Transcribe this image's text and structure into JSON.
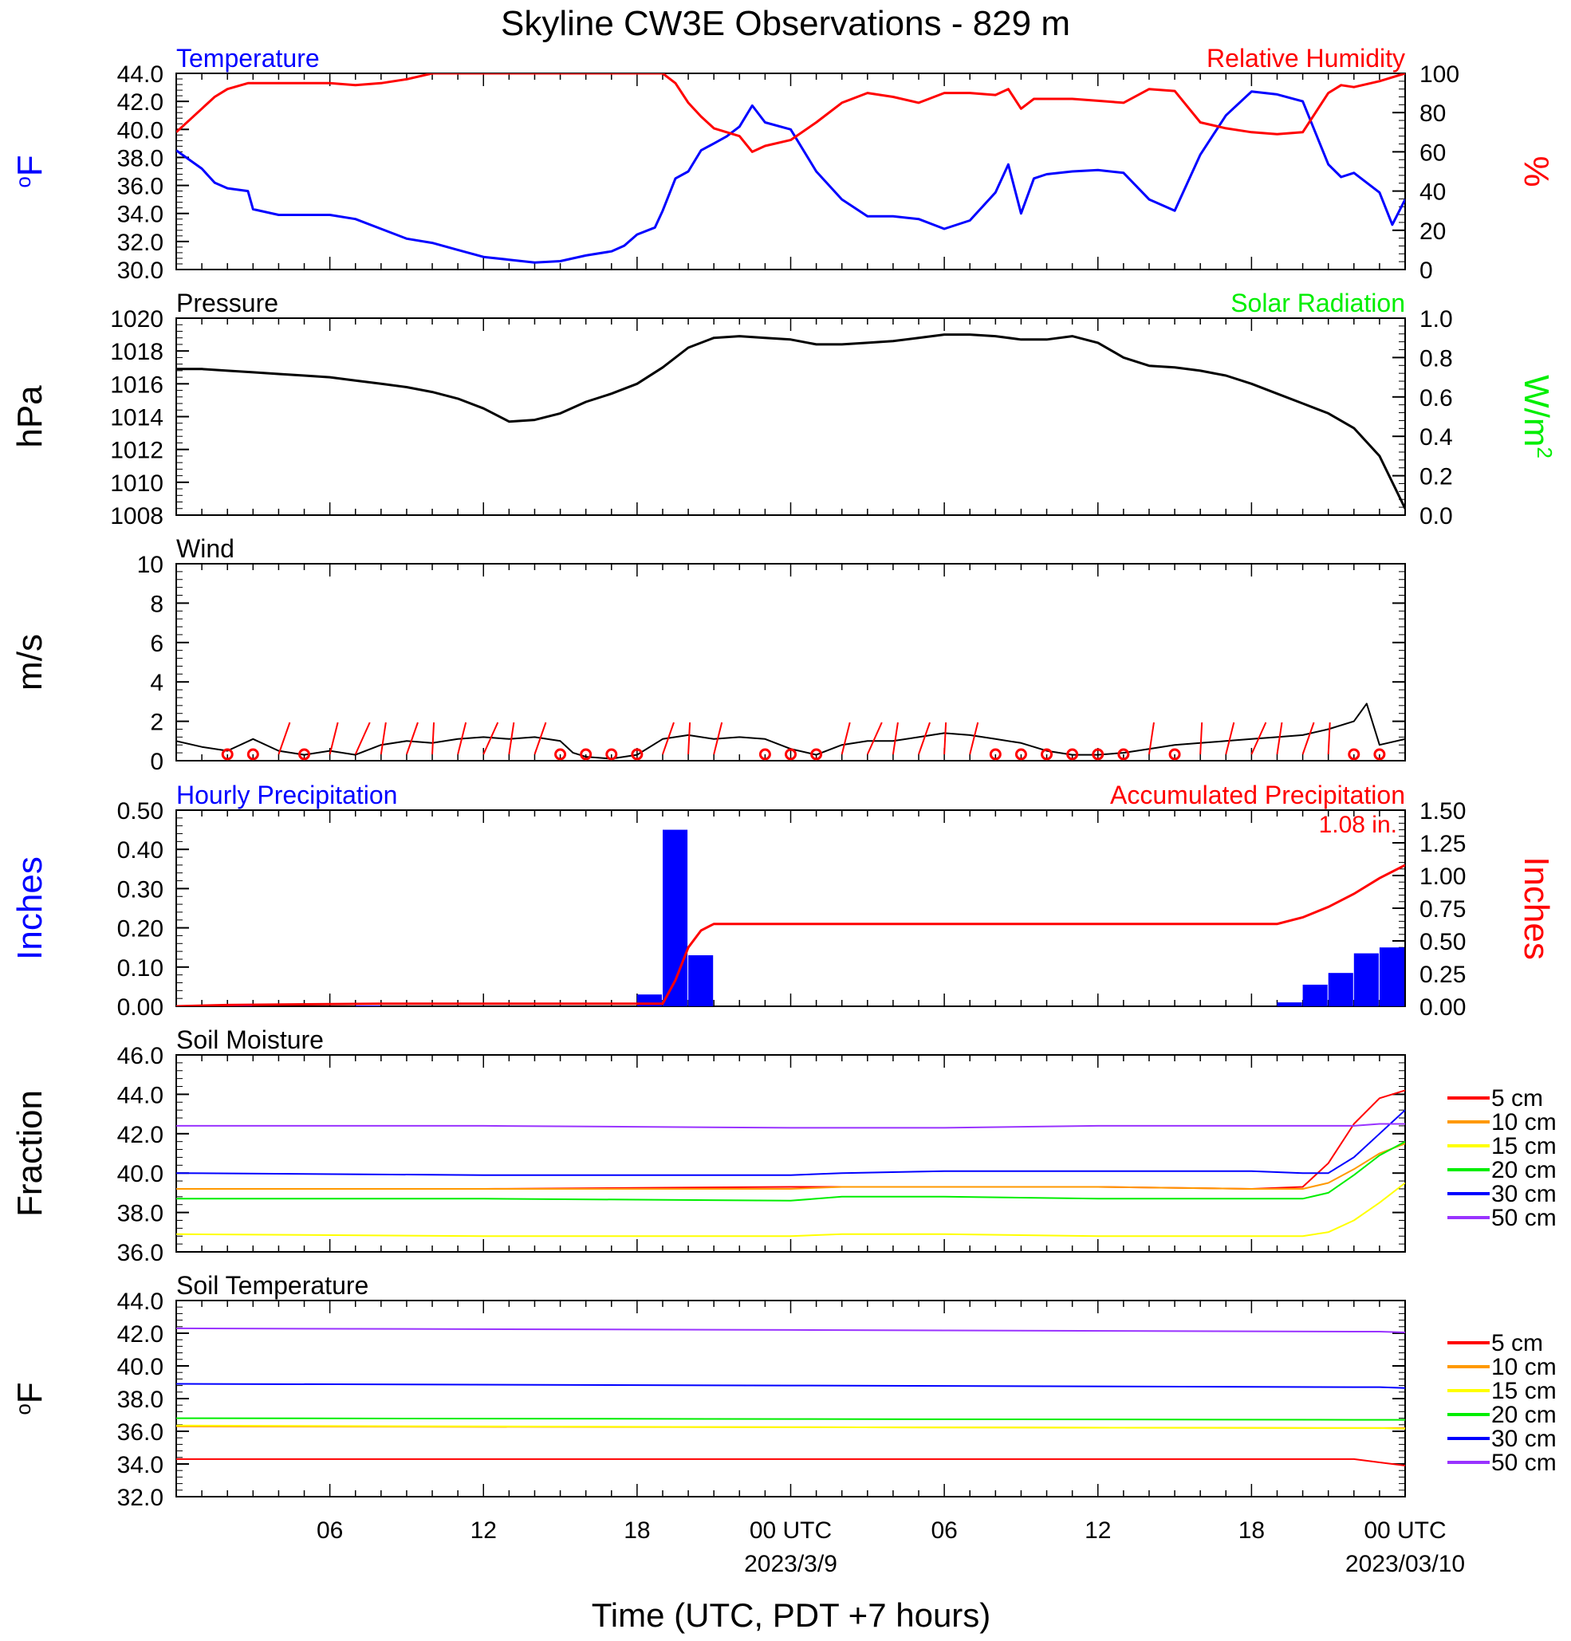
{
  "title": "Skyline CW3E Observations - 829 m",
  "xlabel": "Time (UTC, PDT +7 hours)",
  "x_ticks": [
    {
      "hour": 6,
      "label": "06"
    },
    {
      "hour": 12,
      "label": "12"
    },
    {
      "hour": 18,
      "label": "18"
    },
    {
      "hour": 24,
      "label": "00 UTC",
      "date": "2023/3/9"
    },
    {
      "hour": 30,
      "label": "06"
    },
    {
      "hour": 36,
      "label": "12"
    },
    {
      "hour": 42,
      "label": "18"
    },
    {
      "hour": 48,
      "label": "00 UTC",
      "date": "2023/03/10"
    }
  ],
  "legend_labels": [
    "5 cm",
    "10 cm",
    "15 cm",
    "20 cm",
    "30 cm",
    "50 cm"
  ],
  "colors": {
    "blue": "#0000ff",
    "red": "#ff0000",
    "green": "#00ee00",
    "black": "#000000",
    "orange": "#ff9900",
    "yellow": "#ffff00",
    "purple": "#9933ff"
  },
  "chart_data": [
    {
      "type": "line",
      "panel": "temperature_rh",
      "title_left": "Temperature",
      "title_right": "Relative Humidity",
      "ylabel": "oF",
      "ylabel_right": "%",
      "ylim": [
        30,
        44
      ],
      "yticks": [
        "30.0",
        "32.0",
        "34.0",
        "36.0",
        "38.0",
        "40.0",
        "42.0",
        "44.0"
      ],
      "ylim_right": [
        0,
        100
      ],
      "yticks_right": [
        "0",
        "20",
        "40",
        "60",
        "80",
        "100"
      ],
      "x": [
        0,
        1,
        1.5,
        2,
        2.8,
        3,
        4,
        5,
        6,
        7,
        8,
        9,
        10,
        11,
        12,
        13,
        14,
        15,
        16,
        17,
        17.5,
        18,
        18.7,
        19,
        19.5,
        20,
        20.5,
        21,
        21.5,
        22,
        22.5,
        23,
        24,
        25,
        26,
        27,
        28,
        29,
        30,
        31,
        32,
        32.5,
        33,
        33.5,
        34,
        35,
        36,
        37,
        38,
        39,
        40,
        41,
        42,
        43,
        44,
        45,
        45.5,
        46,
        47,
        47.5,
        48
      ],
      "series": [
        {
          "name": "Temperature",
          "color": "#0000ff",
          "axis": "left",
          "values": [
            38.5,
            37.2,
            36.2,
            35.8,
            35.6,
            34.3,
            33.9,
            33.9,
            33.9,
            33.6,
            32.9,
            32.2,
            31.9,
            31.4,
            30.9,
            30.7,
            30.5,
            30.6,
            31.0,
            31.3,
            31.7,
            32.5,
            33.0,
            34.2,
            36.5,
            37.0,
            38.5,
            39.0,
            39.5,
            40.2,
            41.7,
            40.5,
            40.0,
            37.0,
            35.0,
            33.8,
            33.8,
            33.6,
            32.9,
            33.5,
            35.5,
            37.5,
            34.0,
            36.5,
            36.8,
            37.0,
            37.1,
            36.9,
            35.0,
            34.2,
            38.2,
            41.0,
            42.7,
            42.5,
            42.0,
            37.5,
            36.6,
            36.9,
            35.5,
            33.2,
            35.0
          ]
        },
        {
          "name": "Relative Humidity",
          "color": "#ff0000",
          "axis": "right",
          "values": [
            70,
            82,
            88,
            92,
            95,
            95,
            95,
            95,
            95,
            94,
            95,
            97,
            100,
            100,
            100,
            100,
            100,
            100,
            100,
            100,
            100,
            100,
            100,
            100,
            95,
            85,
            78,
            72,
            70,
            68,
            60,
            63,
            66,
            75,
            85,
            90,
            88,
            85,
            90,
            90,
            89,
            92,
            82,
            87,
            87,
            87,
            86,
            85,
            92,
            91,
            75,
            72,
            70,
            69,
            70,
            90,
            94,
            93,
            96,
            98,
            100
          ]
        }
      ]
    },
    {
      "type": "line",
      "panel": "pressure_solar",
      "title_left": "Pressure",
      "title_right": "Solar Radiation",
      "ylabel": "hPa",
      "ylabel_right": "W/m2",
      "ylim": [
        1008,
        1020
      ],
      "yticks": [
        "1008",
        "1010",
        "1012",
        "1014",
        "1016",
        "1018",
        "1020"
      ],
      "ylim_right": [
        0,
        1
      ],
      "yticks_right": [
        "0.0",
        "0.2",
        "0.4",
        "0.6",
        "0.8",
        "1.0"
      ],
      "x": [
        0,
        1,
        2,
        3,
        4,
        5,
        6,
        7,
        8,
        9,
        10,
        11,
        12,
        13,
        14,
        15,
        16,
        17,
        18,
        19,
        20,
        21,
        22,
        23,
        24,
        25,
        26,
        27,
        28,
        29,
        30,
        31,
        32,
        33,
        34,
        35,
        36,
        37,
        38,
        39,
        40,
        41,
        42,
        43,
        44,
        45,
        46,
        47,
        48
      ],
      "series": [
        {
          "name": "Pressure",
          "color": "#000000",
          "axis": "left",
          "values": [
            1016.9,
            1016.9,
            1016.8,
            1016.7,
            1016.6,
            1016.5,
            1016.4,
            1016.2,
            1016.0,
            1015.8,
            1015.5,
            1015.1,
            1014.5,
            1013.7,
            1013.8,
            1014.2,
            1014.9,
            1015.4,
            1016.0,
            1017.0,
            1018.2,
            1018.8,
            1018.9,
            1018.8,
            1018.7,
            1018.4,
            1018.4,
            1018.5,
            1018.6,
            1018.8,
            1019.0,
            1019.0,
            1018.9,
            1018.7,
            1018.7,
            1018.9,
            1018.5,
            1017.6,
            1017.1,
            1017.0,
            1016.8,
            1016.5,
            1016.0,
            1015.4,
            1014.8,
            1014.2,
            1013.3,
            1011.6,
            1008.4
          ]
        }
      ]
    },
    {
      "type": "line",
      "panel": "wind",
      "title_left": "Wind",
      "ylabel": "m/s",
      "ylim": [
        0,
        10
      ],
      "yticks": [
        "0",
        "2",
        "4",
        "6",
        "8",
        "10"
      ],
      "x": [
        0,
        1,
        2,
        3,
        4,
        5,
        6,
        7,
        8,
        9,
        10,
        11,
        12,
        13,
        14,
        15,
        15.5,
        16,
        17,
        18,
        19,
        20,
        21,
        22,
        23,
        24,
        25,
        26,
        27,
        28,
        29,
        30,
        31,
        32,
        33,
        34,
        35,
        36,
        37,
        38,
        39,
        40,
        41,
        42,
        43,
        44,
        45,
        46,
        46.5,
        47,
        48
      ],
      "series": [
        {
          "name": "Wind speed",
          "color": "#000000",
          "axis": "left",
          "values": [
            1.0,
            0.7,
            0.5,
            1.1,
            0.5,
            0.3,
            0.5,
            0.3,
            0.8,
            1.0,
            0.9,
            1.1,
            1.2,
            1.1,
            1.2,
            1.0,
            0.4,
            0.2,
            0.1,
            0.3,
            1.1,
            1.3,
            1.1,
            1.2,
            1.1,
            0.6,
            0.3,
            0.8,
            1.0,
            1.0,
            1.2,
            1.4,
            1.3,
            1.1,
            0.9,
            0.5,
            0.3,
            0.3,
            0.4,
            0.6,
            0.8,
            0.9,
            1.0,
            1.1,
            1.2,
            1.3,
            1.6,
            2.0,
            2.9,
            0.8,
            1.1
          ]
        }
      ],
      "barbs": [
        {
          "hour": 2,
          "calm": true
        },
        {
          "hour": 3,
          "calm": true
        },
        {
          "hour": 4,
          "calm": false
        },
        {
          "hour": 5,
          "calm": true
        },
        {
          "hour": 6,
          "calm": false
        },
        {
          "hour": 7,
          "calm": false
        },
        {
          "hour": 8,
          "calm": false
        },
        {
          "hour": 9,
          "calm": false
        },
        {
          "hour": 10,
          "calm": false
        },
        {
          "hour": 11,
          "calm": false
        },
        {
          "hour": 12,
          "calm": false
        },
        {
          "hour": 13,
          "calm": false
        },
        {
          "hour": 14,
          "calm": false
        },
        {
          "hour": 15,
          "calm": true
        },
        {
          "hour": 16,
          "calm": true
        },
        {
          "hour": 17,
          "calm": true
        },
        {
          "hour": 18,
          "calm": true
        },
        {
          "hour": 19,
          "calm": false
        },
        {
          "hour": 20,
          "calm": false
        },
        {
          "hour": 21,
          "calm": false
        },
        {
          "hour": 23,
          "calm": true
        },
        {
          "hour": 24,
          "calm": true
        },
        {
          "hour": 25,
          "calm": true
        },
        {
          "hour": 26,
          "calm": false
        },
        {
          "hour": 27,
          "calm": false
        },
        {
          "hour": 28,
          "calm": false
        },
        {
          "hour": 29,
          "calm": false
        },
        {
          "hour": 30,
          "calm": false
        },
        {
          "hour": 31,
          "calm": false
        },
        {
          "hour": 32,
          "calm": true
        },
        {
          "hour": 33,
          "calm": true
        },
        {
          "hour": 34,
          "calm": true
        },
        {
          "hour": 35,
          "calm": true
        },
        {
          "hour": 36,
          "calm": true
        },
        {
          "hour": 37,
          "calm": true
        },
        {
          "hour": 38,
          "calm": false
        },
        {
          "hour": 39,
          "calm": true
        },
        {
          "hour": 40,
          "calm": false
        },
        {
          "hour": 41,
          "calm": false
        },
        {
          "hour": 42,
          "calm": false
        },
        {
          "hour": 43,
          "calm": false
        },
        {
          "hour": 44,
          "calm": false
        },
        {
          "hour": 45,
          "calm": false
        },
        {
          "hour": 46,
          "calm": true
        },
        {
          "hour": 47,
          "calm": true
        }
      ]
    },
    {
      "type": "bar",
      "panel": "precipitation",
      "title_left": "Hourly Precipitation",
      "title_right": "Accumulated Precipitation",
      "annotation": "1.08 in.",
      "ylabel": "Inches",
      "ylabel_right": "Inches",
      "ylim": [
        0,
        0.5
      ],
      "yticks": [
        "0.00",
        "0.10",
        "0.20",
        "0.30",
        "0.40",
        "0.50"
      ],
      "ylim_right": [
        0,
        1.5
      ],
      "yticks_right": [
        "0.00",
        "0.25",
        "0.50",
        "0.75",
        "1.00",
        "1.25",
        "1.50"
      ],
      "hourly": {
        "name": "Hourly Precipitation",
        "color": "#0000ff",
        "hours": [
          2,
          7,
          18,
          19,
          20,
          43,
          44,
          45,
          46,
          47
        ],
        "values": [
          0.002,
          0.002,
          0.03,
          0.45,
          0.13,
          0.01,
          0.055,
          0.085,
          0.135,
          0.15
        ]
      },
      "accumulated": {
        "name": "Accumulated Precipitation",
        "color": "#ff0000",
        "x": [
          0,
          2,
          5,
          8,
          19,
          19.5,
          20,
          20.5,
          21,
          43,
          44,
          45,
          46,
          47,
          48
        ],
        "values": [
          0.0,
          0.01,
          0.015,
          0.02,
          0.02,
          0.2,
          0.45,
          0.58,
          0.63,
          0.63,
          0.68,
          0.76,
          0.86,
          0.98,
          1.08
        ]
      }
    },
    {
      "type": "line",
      "panel": "soil_moisture",
      "title_left": "Soil Moisture",
      "ylabel": "Fraction",
      "ylim": [
        36,
        46
      ],
      "yticks": [
        "36.0",
        "38.0",
        "40.0",
        "42.0",
        "44.0",
        "46.0"
      ],
      "x": [
        0,
        12,
        24,
        26,
        30,
        36,
        42,
        44,
        45,
        46,
        47,
        48
      ],
      "series": [
        {
          "name": "5 cm",
          "color": "#ff0000",
          "values": [
            39.2,
            39.2,
            39.3,
            39.3,
            39.3,
            39.3,
            39.2,
            39.3,
            40.5,
            42.5,
            43.8,
            44.2
          ]
        },
        {
          "name": "10 cm",
          "color": "#ff9900",
          "values": [
            39.2,
            39.2,
            39.2,
            39.3,
            39.3,
            39.3,
            39.2,
            39.2,
            39.5,
            40.2,
            41.0,
            41.5
          ]
        },
        {
          "name": "15 cm",
          "color": "#ffff00",
          "values": [
            36.9,
            36.8,
            36.8,
            36.9,
            36.9,
            36.8,
            36.8,
            36.8,
            37.0,
            37.6,
            38.5,
            39.5
          ]
        },
        {
          "name": "20 cm",
          "color": "#00ee00",
          "values": [
            38.7,
            38.7,
            38.6,
            38.8,
            38.8,
            38.7,
            38.7,
            38.7,
            39.0,
            39.9,
            40.9,
            41.6
          ]
        },
        {
          "name": "30 cm",
          "color": "#0000ff",
          "values": [
            40.0,
            39.9,
            39.9,
            40.0,
            40.1,
            40.1,
            40.1,
            40.0,
            40.0,
            40.8,
            42.0,
            43.2
          ]
        },
        {
          "name": "50 cm",
          "color": "#9933ff",
          "values": [
            42.4,
            42.4,
            42.3,
            42.3,
            42.3,
            42.4,
            42.4,
            42.4,
            42.4,
            42.4,
            42.5,
            42.5
          ]
        }
      ]
    },
    {
      "type": "line",
      "panel": "soil_temperature",
      "title_left": "Soil Temperature",
      "ylabel": "oF",
      "ylim": [
        32,
        44
      ],
      "yticks": [
        "32.0",
        "34.0",
        "36.0",
        "38.0",
        "40.0",
        "42.0",
        "44.0"
      ],
      "x": [
        0,
        24,
        46,
        47,
        48
      ],
      "series": [
        {
          "name": "5 cm",
          "color": "#ff0000",
          "values": [
            34.3,
            34.3,
            34.3,
            34.1,
            33.9
          ]
        },
        {
          "name": "10 cm",
          "color": "#ff9900",
          "values": [
            36.3,
            36.25,
            36.2,
            36.2,
            36.2
          ]
        },
        {
          "name": "15 cm",
          "color": "#ffff00",
          "values": [
            36.35,
            36.25,
            36.2,
            36.2,
            36.15
          ]
        },
        {
          "name": "20 cm",
          "color": "#00ee00",
          "values": [
            36.8,
            36.75,
            36.7,
            36.7,
            36.7
          ]
        },
        {
          "name": "30 cm",
          "color": "#0000ff",
          "values": [
            38.9,
            38.8,
            38.7,
            38.7,
            38.65
          ]
        },
        {
          "name": "50 cm",
          "color": "#9933ff",
          "values": [
            42.3,
            42.2,
            42.1,
            42.1,
            42.05
          ]
        }
      ]
    }
  ]
}
